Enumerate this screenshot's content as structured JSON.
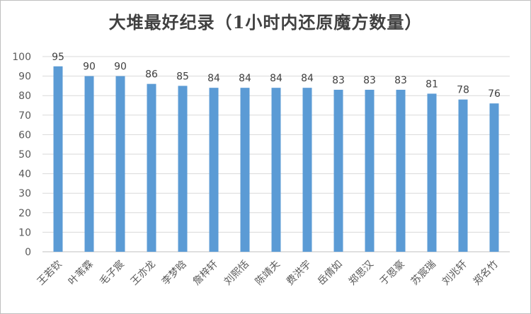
{
  "chart_data": {
    "type": "bar",
    "title": "大堆最好纪录（1小时内还原魔方数量）",
    "xlabel": "",
    "ylabel": "",
    "categories": [
      "王若钦",
      "叶苇霖",
      "毛子宸",
      "王亦龙",
      "李梦晗",
      "詹梓轩",
      "刘熙恬",
      "陈靖夫",
      "费洪宇",
      "岳倩如",
      "郑思汉",
      "于恩豪",
      "苏宸瑞",
      "刘兆轩",
      "郑名竹"
    ],
    "values": [
      95,
      90,
      90,
      86,
      85,
      84,
      84,
      84,
      84,
      83,
      83,
      83,
      81,
      78,
      76
    ],
    "ylim": [
      0,
      100
    ],
    "yticks": [
      0,
      10,
      20,
      30,
      40,
      50,
      60,
      70,
      80,
      90,
      100
    ],
    "grid": true,
    "data_labels": true,
    "legend": "none",
    "colors": {
      "bar": "#5b9bd5",
      "grid": "#d9d9d9",
      "axis": "#bfbfbf",
      "text": "#595959"
    }
  }
}
